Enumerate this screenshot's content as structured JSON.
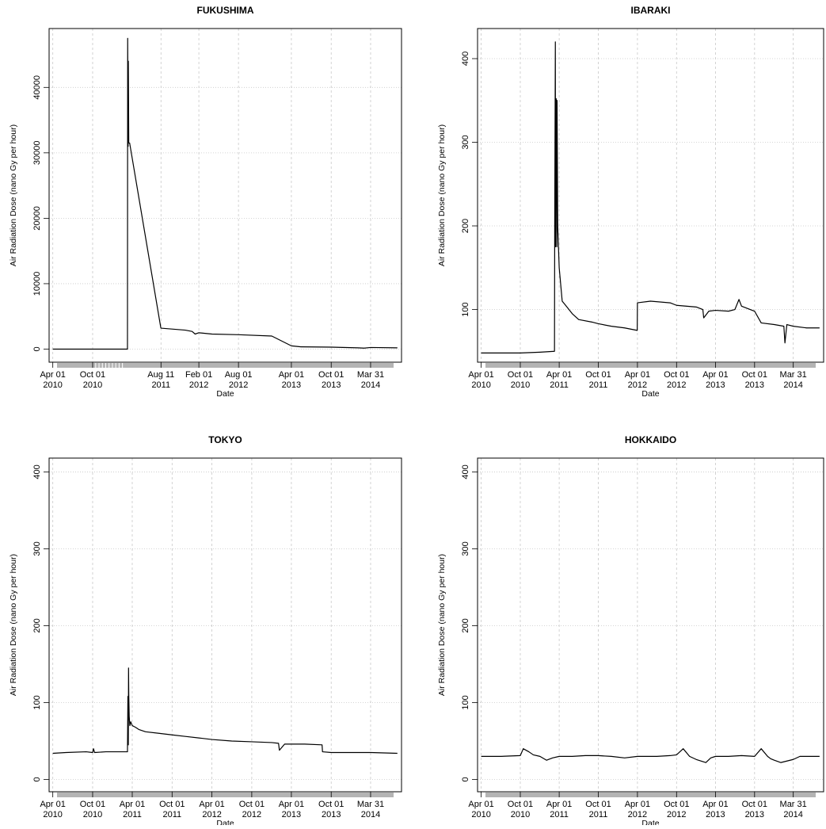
{
  "chart_data": [
    {
      "type": "line",
      "title": "FUKUSHIMA",
      "xlabel": "Date",
      "ylabel": "Air Radiation Dose (nano Gy per hour)",
      "xlim": [
        "2010-03-15",
        "2014-08-20"
      ],
      "ylim": [
        -2000,
        49000
      ],
      "yticks": [
        0,
        10000,
        20000,
        30000,
        40000
      ],
      "xticks": [
        {
          "date": "2010-04-01",
          "label": [
            "Apr 01",
            "2010"
          ]
        },
        {
          "date": "2010-10-01",
          "label": [
            "Oct 01",
            "2010"
          ]
        },
        {
          "date": "2011-08-11",
          "label": [
            "Aug 11",
            "2011"
          ]
        },
        {
          "date": "2012-02-01",
          "label": [
            "Feb 01",
            "2012"
          ]
        },
        {
          "date": "2012-08-01",
          "label": [
            "Aug 01",
            "2012"
          ]
        },
        {
          "date": "2013-04-01",
          "label": [
            "Apr 01",
            "2013"
          ]
        },
        {
          "date": "2013-10-01",
          "label": [
            "Oct 01",
            "2013"
          ]
        },
        {
          "date": "2014-03-31",
          "label": [
            "Mar 31",
            "2014"
          ]
        }
      ],
      "grid": true,
      "series": [
        {
          "x": [
            "2010-04-01",
            "2011-03-10",
            "2011-03-10",
            "2011-03-11",
            "2011-03-13",
            "2011-03-14",
            "2011-03-15",
            "2011-03-16",
            "2011-03-20",
            "2011-08-10",
            "2011-08-11",
            "2011-12-01",
            "2012-01-01",
            "2012-01-15",
            "2012-02-01",
            "2012-04-01",
            "2012-08-01",
            "2013-01-01",
            "2013-04-01",
            "2013-05-15",
            "2013-10-01",
            "2014-02-01",
            "2014-03-01",
            "2014-03-31",
            "2014-08-01"
          ],
          "y": [
            0,
            0,
            0,
            47500,
            31000,
            44000,
            38000,
            31500,
            31500,
            3300,
            3200,
            2900,
            2700,
            2300,
            2500,
            2300,
            2200,
            2000,
            500,
            350,
            300,
            200,
            150,
            250,
            200
          ]
        }
      ]
    },
    {
      "type": "line",
      "title": "IBARAKI",
      "xlabel": "Date",
      "ylabel": "Air Radiation Dose (nano Gy per hour)",
      "xlim": [
        "2010-03-15",
        "2014-08-20"
      ],
      "ylim": [
        37,
        436
      ],
      "yticks": [
        100,
        200,
        300,
        400
      ],
      "xticks": [
        {
          "date": "2010-04-01",
          "label": [
            "Apr 01",
            "2010"
          ]
        },
        {
          "date": "2010-10-01",
          "label": [
            "Oct 01",
            "2010"
          ]
        },
        {
          "date": "2011-04-01",
          "label": [
            "Apr 01",
            "2011"
          ]
        },
        {
          "date": "2011-10-01",
          "label": [
            "Oct 01",
            "2011"
          ]
        },
        {
          "date": "2012-04-01",
          "label": [
            "Apr 01",
            "2012"
          ]
        },
        {
          "date": "2012-10-01",
          "label": [
            "Oct 01",
            "2012"
          ]
        },
        {
          "date": "2013-04-01",
          "label": [
            "Apr 01",
            "2013"
          ]
        },
        {
          "date": "2013-10-01",
          "label": [
            "Oct 01",
            "2013"
          ]
        },
        {
          "date": "2014-03-31",
          "label": [
            "Mar 31",
            "2014"
          ]
        }
      ],
      "grid": true,
      "series": [
        {
          "x": [
            "2010-04-01",
            "2010-07-01",
            "2010-10-01",
            "2011-01-01",
            "2011-03-10",
            "2011-03-11",
            "2011-03-14",
            "2011-03-15",
            "2011-03-16",
            "2011-03-18",
            "2011-03-21",
            "2011-03-22",
            "2011-03-25",
            "2011-04-01",
            "2011-04-15",
            "2011-05-01",
            "2011-06-01",
            "2011-07-01",
            "2011-09-01",
            "2011-10-01",
            "2011-12-01",
            "2012-02-01",
            "2012-03-31",
            "2012-04-01",
            "2012-06-01",
            "2012-09-01",
            "2012-10-01",
            "2013-01-01",
            "2013-02-01",
            "2013-02-05",
            "2013-03-01",
            "2013-04-01",
            "2013-06-01",
            "2013-07-01",
            "2013-07-20",
            "2013-08-01",
            "2013-10-01",
            "2013-11-01",
            "2014-01-01",
            "2014-02-15",
            "2014-02-20",
            "2014-03-01",
            "2014-03-31",
            "2014-06-01",
            "2014-08-01"
          ],
          "y": [
            48,
            48,
            48,
            49,
            50,
            200,
            420,
            175,
            260,
            352,
            175,
            350,
            200,
            150,
            110,
            105,
            95,
            88,
            85,
            83,
            80,
            78,
            75,
            108,
            110,
            108,
            105,
            103,
            100,
            90,
            98,
            99,
            98,
            100,
            112,
            104,
            98,
            84,
            82,
            80,
            60,
            82,
            80,
            78,
            78
          ]
        }
      ]
    },
    {
      "type": "line",
      "title": "TOKYO",
      "xlabel": "Date",
      "ylabel": "Air Radiation Dose (nano Gy per hour)",
      "xlim": [
        "2010-03-15",
        "2014-08-20"
      ],
      "ylim": [
        -16,
        418
      ],
      "yticks": [
        0,
        100,
        200,
        300,
        400
      ],
      "xticks": [
        {
          "date": "2010-04-01",
          "label": [
            "Apr 01",
            "2010"
          ]
        },
        {
          "date": "2010-10-01",
          "label": [
            "Oct 01",
            "2010"
          ]
        },
        {
          "date": "2011-04-01",
          "label": [
            "Apr 01",
            "2011"
          ]
        },
        {
          "date": "2011-10-01",
          "label": [
            "Oct 01",
            "2011"
          ]
        },
        {
          "date": "2012-04-01",
          "label": [
            "Apr 01",
            "2012"
          ]
        },
        {
          "date": "2012-10-01",
          "label": [
            "Oct 01",
            "2012"
          ]
        },
        {
          "date": "2013-04-01",
          "label": [
            "Apr 01",
            "2013"
          ]
        },
        {
          "date": "2013-10-01",
          "label": [
            "Oct 01",
            "2013"
          ]
        },
        {
          "date": "2014-03-31",
          "label": [
            "Mar 31",
            "2014"
          ]
        }
      ],
      "grid": true,
      "series": [
        {
          "x": [
            "2010-04-01",
            "2010-06-01",
            "2010-09-01",
            "2010-10-01",
            "2010-10-05",
            "2010-10-10",
            "2010-12-01",
            "2011-02-01",
            "2011-03-10",
            "2011-03-12",
            "2011-03-14",
            "2011-03-15",
            "2011-03-16",
            "2011-03-18",
            "2011-03-21",
            "2011-03-25",
            "2011-04-01",
            "2011-04-15",
            "2011-05-01",
            "2011-06-01",
            "2011-08-01",
            "2011-10-01",
            "2011-12-01",
            "2012-02-01",
            "2012-04-01",
            "2012-07-01",
            "2012-10-01",
            "2013-01-01",
            "2013-02-01",
            "2013-02-05",
            "2013-03-01",
            "2013-06-01",
            "2013-08-20",
            "2013-08-22",
            "2013-10-01",
            "2014-01-01",
            "2014-03-31",
            "2014-08-01"
          ],
          "y": [
            34,
            35,
            36,
            35,
            40,
            35,
            36,
            36,
            36,
            108,
            45,
            145,
            110,
            82,
            70,
            75,
            70,
            68,
            65,
            62,
            60,
            58,
            56,
            54,
            52,
            50,
            49,
            48,
            47,
            38,
            46,
            46,
            45,
            36,
            35,
            35,
            35,
            34
          ]
        }
      ]
    },
    {
      "type": "line",
      "title": "HOKKAIDO",
      "xlabel": "Date",
      "ylabel": "Air Radiation Dose (nano Gy per hour)",
      "xlim": [
        "2010-03-15",
        "2014-08-20"
      ],
      "ylim": [
        -16,
        418
      ],
      "yticks": [
        0,
        100,
        200,
        300,
        400
      ],
      "xticks": [
        {
          "date": "2010-04-01",
          "label": [
            "Apr 01",
            "2010"
          ]
        },
        {
          "date": "2010-10-01",
          "label": [
            "Oct 01",
            "2010"
          ]
        },
        {
          "date": "2011-04-01",
          "label": [
            "Apr 01",
            "2011"
          ]
        },
        {
          "date": "2011-10-01",
          "label": [
            "Oct 01",
            "2011"
          ]
        },
        {
          "date": "2012-04-01",
          "label": [
            "Apr 01",
            "2012"
          ]
        },
        {
          "date": "2012-10-01",
          "label": [
            "Oct 01",
            "2012"
          ]
        },
        {
          "date": "2013-04-01",
          "label": [
            "Apr 01",
            "2013"
          ]
        },
        {
          "date": "2013-10-01",
          "label": [
            "Oct 01",
            "2013"
          ]
        },
        {
          "date": "2014-03-31",
          "label": [
            "Mar 31",
            "2014"
          ]
        }
      ],
      "grid": true,
      "series": [
        {
          "x": [
            "2010-04-01",
            "2010-07-01",
            "2010-10-01",
            "2010-10-15",
            "2010-11-10",
            "2010-12-01",
            "2011-01-01",
            "2011-02-01",
            "2011-03-01",
            "2011-04-01",
            "2011-06-01",
            "2011-08-01",
            "2011-10-01",
            "2011-12-01",
            "2012-02-01",
            "2012-04-01",
            "2012-07-01",
            "2012-09-01",
            "2012-10-01",
            "2012-11-01",
            "2012-12-01",
            "2013-01-01",
            "2013-02-15",
            "2013-03-10",
            "2013-04-01",
            "2013-06-01",
            "2013-08-01",
            "2013-10-01",
            "2013-11-01",
            "2013-12-01",
            "2013-12-15",
            "2014-01-01",
            "2014-02-01",
            "2014-03-31",
            "2014-05-01",
            "2014-08-01"
          ],
          "y": [
            30,
            30,
            31,
            40,
            36,
            32,
            30,
            25,
            28,
            30,
            30,
            31,
            31,
            30,
            28,
            30,
            30,
            31,
            32,
            40,
            30,
            26,
            22,
            28,
            30,
            30,
            31,
            30,
            40,
            30,
            27,
            25,
            22,
            26,
            30,
            30
          ]
        }
      ]
    }
  ]
}
